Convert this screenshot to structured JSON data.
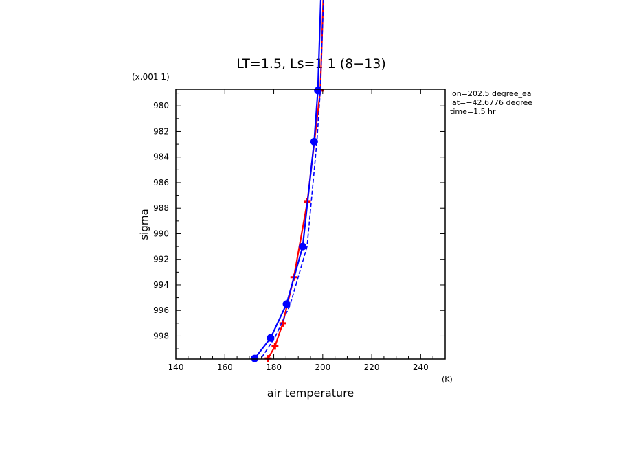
{
  "chart_data": {
    "type": "line",
    "title": "LT=1.5, Ls=1 1 (8−13)",
    "xlabel": "air temperature",
    "xunit": "(K)",
    "ylabel": "sigma",
    "yscale_note": "(x.001 1)",
    "xlim": [
      140,
      250
    ],
    "ylim": [
      999.8,
      978.7
    ],
    "y_inverted": true,
    "xticks": [
      140,
      160,
      180,
      200,
      220,
      240
    ],
    "yticks": [
      980,
      982,
      984,
      986,
      988,
      990,
      992,
      994,
      996,
      998
    ],
    "info": [
      "lon=202.5 degree_ea",
      "lat=−42.6776 degree",
      "time=1.5 hr"
    ],
    "grid": false,
    "legend": "none",
    "series": [
      {
        "color": "#ff0000",
        "marker": "plus",
        "style": "solid",
        "points": [
          {
            "x": 177.7,
            "y": 999.75
          },
          {
            "x": 180.5,
            "y": 998.8
          },
          {
            "x": 183.7,
            "y": 997.0
          },
          {
            "x": 188.2,
            "y": 993.4
          },
          {
            "x": 193.7,
            "y": 987.5
          },
          {
            "x": 199.0,
            "y": 978.8
          },
          {
            "x": 200.5,
            "y": 970.0
          }
        ]
      },
      {
        "color": "#0000ff",
        "marker": "dot",
        "style": "solid",
        "points": [
          {
            "x": 172.2,
            "y": 999.75
          },
          {
            "x": 178.7,
            "y": 998.15
          },
          {
            "x": 185.2,
            "y": 995.5
          },
          {
            "x": 191.8,
            "y": 991.0
          },
          {
            "x": 196.5,
            "y": 982.8
          },
          {
            "x": 198.0,
            "y": 978.8
          },
          {
            "x": 199.5,
            "y": 970.0
          }
        ]
      },
      {
        "color": "#0000ff",
        "marker": "none",
        "style": "dashed",
        "points": [
          {
            "x": 175.0,
            "y": 999.7
          },
          {
            "x": 180.5,
            "y": 998.1
          },
          {
            "x": 186.6,
            "y": 995.6
          },
          {
            "x": 193.6,
            "y": 991.0
          },
          {
            "x": 197.6,
            "y": 982.8
          },
          {
            "x": 199.0,
            "y": 978.8
          },
          {
            "x": 200.6,
            "y": 970.0
          }
        ]
      }
    ]
  }
}
